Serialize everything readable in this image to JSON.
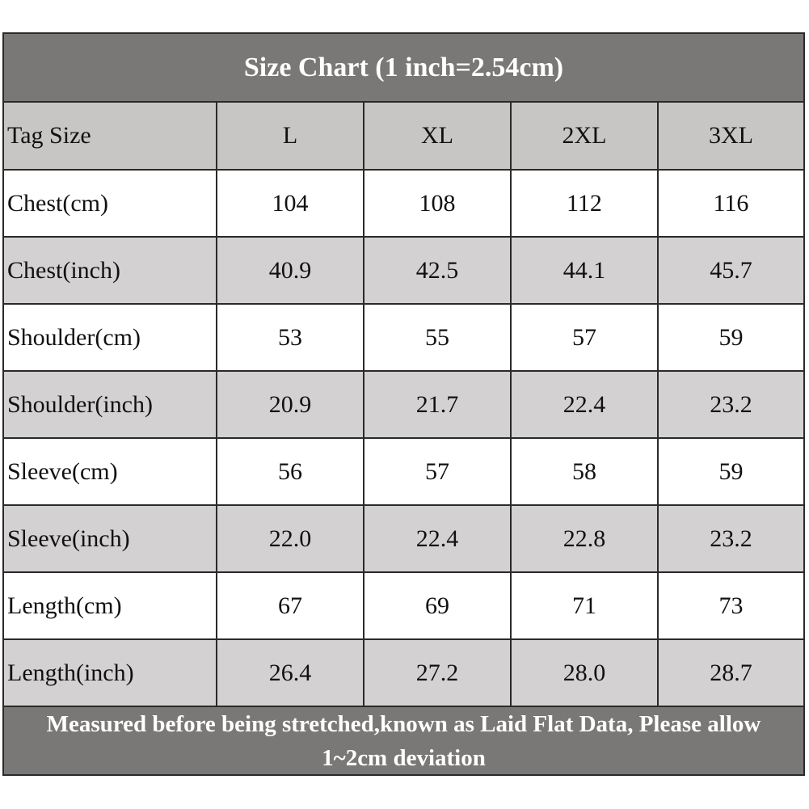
{
  "title": "Size Chart (1 inch=2.54cm)",
  "header": {
    "label": "Tag Size",
    "sizes": [
      "L",
      "XL",
      "2XL",
      "3XL"
    ]
  },
  "rows": [
    {
      "label": "Chest(cm)",
      "values": [
        "104",
        "108",
        "112",
        "116"
      ]
    },
    {
      "label": "Chest(inch)",
      "values": [
        "40.9",
        "42.5",
        "44.1",
        "45.7"
      ]
    },
    {
      "label": "Shoulder(cm)",
      "values": [
        "53",
        "55",
        "57",
        "59"
      ]
    },
    {
      "label": "Shoulder(inch)",
      "values": [
        "20.9",
        "21.7",
        "22.4",
        "23.2"
      ]
    },
    {
      "label": "Sleeve(cm)",
      "values": [
        "56",
        "57",
        "58",
        "59"
      ]
    },
    {
      "label": "Sleeve(inch)",
      "values": [
        "22.0",
        "22.4",
        "22.8",
        "23.2"
      ]
    },
    {
      "label": "Length(cm)",
      "values": [
        "67",
        "69",
        "71",
        "73"
      ]
    },
    {
      "label": "Length(inch)",
      "values": [
        "26.4",
        "27.2",
        "28.0",
        "28.7"
      ]
    }
  ],
  "footer": "Measured before being stretched,known as Laid Flat Data, Please allow 1~2cm deviation",
  "colors": {
    "title_bg": "#7a7777",
    "header_bg": "#c8c5c5",
    "shade_bg": "#d3d1d1",
    "border": "#2a2a2a"
  }
}
